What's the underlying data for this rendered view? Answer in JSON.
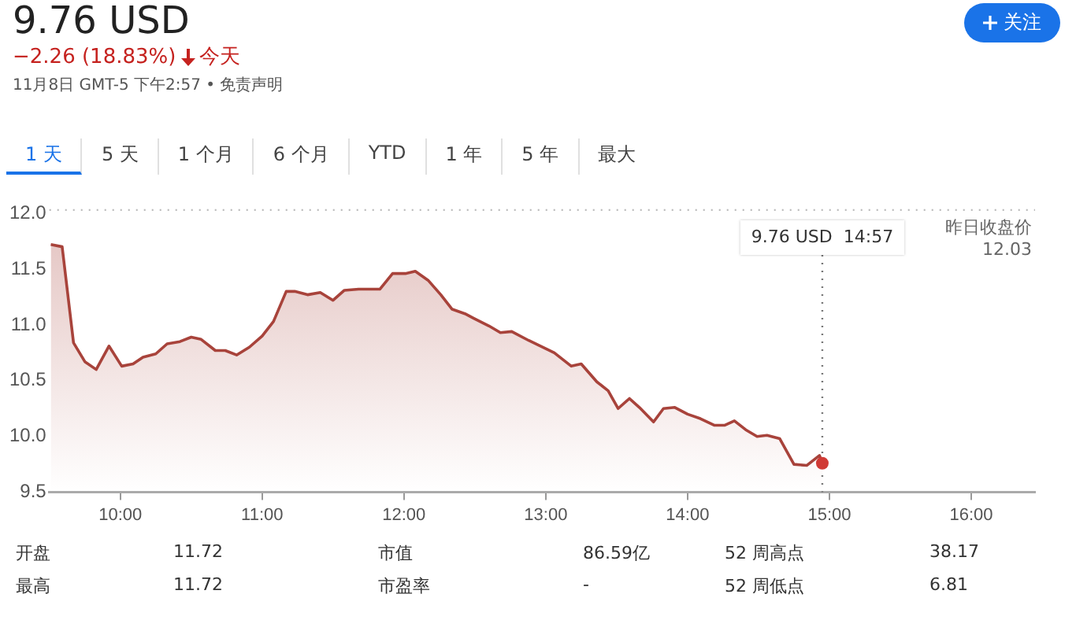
{
  "chart_data": {
    "type": "area",
    "title": "9.76 USD",
    "subtitle": "−2.26 (18.83%) 今天",
    "x": [
      9.51,
      9.59,
      9.67,
      9.75,
      9.83,
      9.92,
      10.01,
      10.09,
      10.16,
      10.25,
      10.33,
      10.42,
      10.5,
      10.57,
      10.67,
      10.74,
      10.82,
      10.91,
      11.0,
      11.08,
      11.17,
      11.23,
      11.32,
      11.41,
      11.5,
      11.58,
      11.68,
      11.83,
      11.92,
      12.01,
      12.08,
      12.17,
      12.26,
      12.34,
      12.43,
      12.49,
      12.6,
      12.68,
      12.76,
      12.88,
      12.98,
      13.06,
      13.18,
      13.25,
      13.36,
      13.44,
      13.51,
      13.59,
      13.66,
      13.76,
      13.83,
      13.91,
      14.0,
      14.09,
      14.19,
      14.26,
      14.33,
      14.41,
      14.49,
      14.56,
      14.65,
      14.75,
      14.84,
      14.93,
      14.95
    ],
    "series": [
      {
        "color": "#a8433b",
        "values": [
          11.72,
          11.7,
          10.84,
          10.67,
          10.6,
          10.81,
          10.63,
          10.65,
          10.71,
          10.74,
          10.83,
          10.85,
          10.89,
          10.87,
          10.77,
          10.77,
          10.73,
          10.8,
          10.9,
          11.03,
          11.3,
          11.3,
          11.27,
          11.29,
          11.22,
          11.31,
          11.32,
          11.32,
          11.46,
          11.46,
          11.48,
          11.4,
          11.27,
          11.14,
          11.1,
          11.06,
          10.99,
          10.93,
          10.94,
          10.86,
          10.8,
          10.75,
          10.63,
          10.65,
          10.49,
          10.41,
          10.25,
          10.34,
          10.26,
          10.13,
          10.25,
          10.26,
          10.2,
          10.16,
          10.1,
          10.1,
          10.14,
          10.06,
          10.0,
          10.01,
          9.98,
          9.75,
          9.74,
          9.83,
          9.76
        ]
      }
    ],
    "xlim": [
      9.5,
      16.45
    ],
    "ylim": [
      9.5,
      12.05
    ],
    "xticks": [
      {
        "value": 10,
        "label": "10:00"
      },
      {
        "value": 11,
        "label": "11:00"
      },
      {
        "value": 12,
        "label": "12:00"
      },
      {
        "value": 13,
        "label": "13:00"
      },
      {
        "value": 14,
        "label": "14:00"
      },
      {
        "value": 15,
        "label": "15:00"
      },
      {
        "value": 16,
        "label": "16:00"
      }
    ],
    "yticks": [
      9.5,
      {
        "value": 10,
        "label": "10.0"
      },
      {
        "value": 10.5,
        "label": "10.5"
      },
      {
        "value": 11,
        "label": "11.0"
      },
      11.5,
      {
        "value": 12,
        "label": "12.0"
      }
    ],
    "grid": false,
    "legend": false,
    "marker": "none",
    "ref_lines": [
      {
        "axis": "y",
        "value": 12.03,
        "label": "昨日收盘价 12.03",
        "color": "#bbbbbb",
        "line_style": "dotted"
      },
      {
        "axis": "x",
        "value": 14.95,
        "color": "#777777",
        "line_style": "dotted"
      }
    ],
    "annotations": [
      "9.76 USD  14:57",
      "11月8日 GMT-5 下午2:57 • 免责声明",
      "关注",
      "1 天",
      "5 天",
      "1 个月",
      "6 个月",
      "YTD",
      "1 年",
      "5 年",
      "最大",
      "开盘",
      "11.72",
      "市值",
      "86.59亿",
      "52 周高点",
      "38.17",
      "最高",
      "11.72",
      "市盈率",
      "-",
      "52 周低点",
      "6.81"
    ]
  }
}
